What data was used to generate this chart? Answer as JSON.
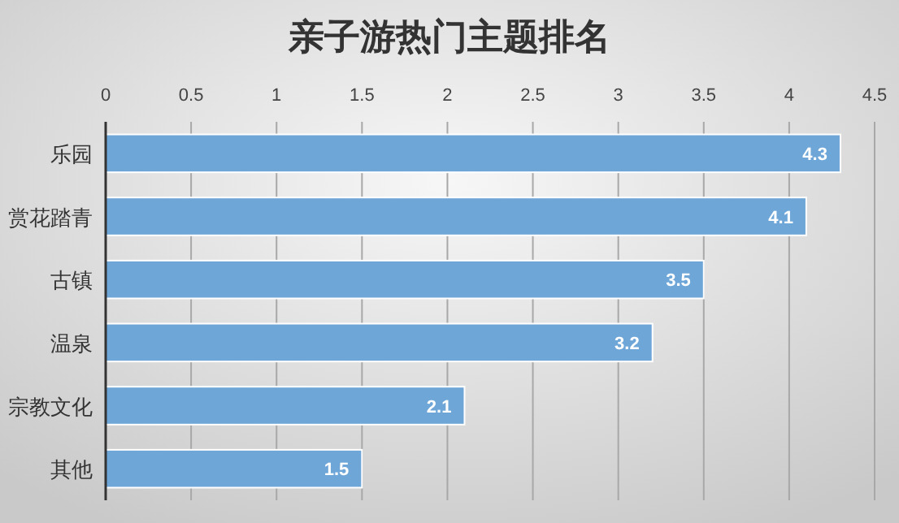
{
  "chart_data": {
    "type": "bar",
    "orientation": "horizontal",
    "title": "亲子游热门主题排名",
    "categories": [
      "乐园",
      "赏花踏青",
      "古镇",
      "温泉",
      "宗教文化",
      "其他"
    ],
    "values": [
      4.3,
      4.1,
      3.5,
      3.2,
      2.1,
      1.5
    ],
    "color": "#6fa6d8",
    "xlim": [
      0,
      4.5
    ],
    "xticks": [
      0,
      0.5,
      1,
      1.5,
      2,
      2.5,
      3,
      3.5,
      4,
      4.5
    ],
    "grid": "x",
    "data_labels": true
  }
}
